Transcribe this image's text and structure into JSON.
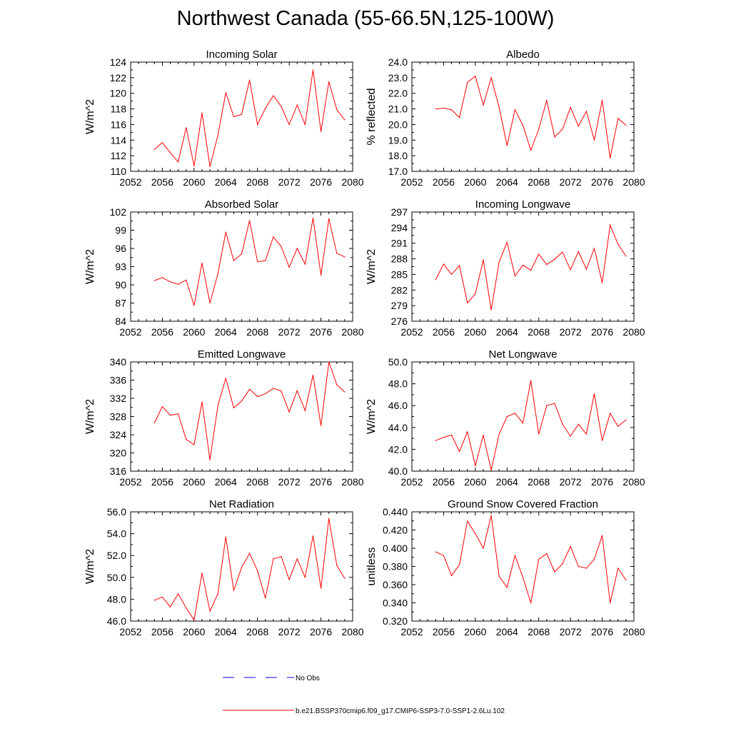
{
  "title": "Northwest Canada (55-66.5N,125-100W)",
  "colors": {
    "series": "#ff0000",
    "obs": "#0000ff",
    "axis": "#000000"
  },
  "legend": {
    "obs_label": "No Obs",
    "model_label": "b.e21.BSSP370cmip6.f09_g17.CMIP6-SSP3-7.0-SSP1-2.6Lu.102"
  },
  "chart_data": [
    {
      "type": "line",
      "title": "Incoming Solar",
      "ylabel": "W/m^2",
      "xlim": [
        2052,
        2080
      ],
      "ylim": [
        110,
        124
      ],
      "xticks": [
        2052,
        2056,
        2060,
        2064,
        2068,
        2072,
        2076,
        2080
      ],
      "yticks": [
        "110",
        "112",
        "114",
        "116",
        "118",
        "120",
        "122",
        "124"
      ],
      "x": [
        2055,
        2056,
        2057,
        2058,
        2059,
        2060,
        2061,
        2062,
        2063,
        2064,
        2065,
        2066,
        2067,
        2068,
        2069,
        2070,
        2071,
        2072,
        2073,
        2074,
        2075,
        2076,
        2077,
        2078,
        2079
      ],
      "series": [
        {
          "values": [
            112.8,
            113.7,
            112.4,
            111.2,
            115.6,
            110.7,
            117.5,
            110.6,
            114.6,
            120.1,
            117.0,
            117.3,
            121.7,
            116.0,
            118.1,
            119.7,
            118.3,
            116.0,
            118.5,
            116.0,
            123.0,
            115.1,
            121.5,
            117.9,
            116.6
          ]
        }
      ]
    },
    {
      "type": "line",
      "title": "Albedo",
      "ylabel": "% reflected",
      "xlim": [
        2052,
        2080
      ],
      "ylim": [
        17,
        24
      ],
      "xticks": [
        2052,
        2056,
        2060,
        2064,
        2068,
        2072,
        2076,
        2080
      ],
      "yticks": [
        "17.0",
        "18.0",
        "19.0",
        "20.0",
        "21.0",
        "22.0",
        "23.0",
        "24.0"
      ],
      "x": [
        2055,
        2056,
        2057,
        2058,
        2059,
        2060,
        2061,
        2062,
        2063,
        2064,
        2065,
        2066,
        2067,
        2068,
        2069,
        2070,
        2071,
        2072,
        2073,
        2074,
        2075,
        2076,
        2077,
        2078,
        2079
      ],
      "series": [
        {
          "values": [
            21.0,
            21.05,
            20.95,
            20.45,
            22.7,
            23.1,
            21.25,
            23.0,
            21.1,
            18.65,
            20.95,
            19.95,
            18.35,
            19.7,
            21.55,
            19.2,
            19.7,
            21.1,
            19.9,
            20.85,
            19.0,
            21.55,
            17.85,
            20.4,
            19.95
          ]
        }
      ]
    },
    {
      "type": "line",
      "title": "Absorbed Solar",
      "ylabel": "W/m^2",
      "xlim": [
        2052,
        2080
      ],
      "ylim": [
        84,
        102
      ],
      "xticks": [
        2052,
        2056,
        2060,
        2064,
        2068,
        2072,
        2076,
        2080
      ],
      "yticks": [
        "84",
        "87",
        "90",
        "93",
        "96",
        "99",
        "102"
      ],
      "x": [
        2055,
        2056,
        2057,
        2058,
        2059,
        2060,
        2061,
        2062,
        2063,
        2064,
        2065,
        2066,
        2067,
        2068,
        2069,
        2070,
        2071,
        2072,
        2073,
        2074,
        2075,
        2076,
        2077,
        2078,
        2079
      ],
      "series": [
        {
          "values": [
            90.7,
            91.2,
            90.5,
            90.1,
            90.8,
            86.6,
            93.6,
            87.0,
            91.8,
            98.7,
            94.0,
            95.1,
            100.6,
            93.8,
            94.0,
            97.9,
            96.3,
            92.9,
            96.0,
            93.4,
            101.0,
            91.6,
            100.9,
            95.2,
            94.6
          ]
        }
      ]
    },
    {
      "type": "line",
      "title": "Incoming Longwave",
      "ylabel": "W/m^2",
      "xlim": [
        2052,
        2080
      ],
      "ylim": [
        276,
        297
      ],
      "xticks": [
        2052,
        2056,
        2060,
        2064,
        2068,
        2072,
        2076,
        2080
      ],
      "yticks": [
        "276",
        "279",
        "282",
        "285",
        "288",
        "291",
        "294",
        "297"
      ],
      "x": [
        2055,
        2056,
        2057,
        2058,
        2059,
        2060,
        2061,
        2062,
        2063,
        2064,
        2065,
        2066,
        2067,
        2068,
        2069,
        2070,
        2071,
        2072,
        2073,
        2074,
        2075,
        2076,
        2077,
        2078,
        2079
      ],
      "series": [
        {
          "values": [
            284.0,
            287.0,
            285.0,
            286.7,
            279.5,
            281.3,
            287.8,
            278.2,
            287.4,
            291.2,
            284.7,
            286.8,
            285.8,
            288.9,
            286.9,
            287.9,
            289.3,
            285.9,
            289.4,
            286.0,
            290.0,
            283.4,
            294.5,
            290.8,
            288.5
          ]
        }
      ]
    },
    {
      "type": "line",
      "title": "Emitted Longwave",
      "ylabel": "W/m^2",
      "xlim": [
        2052,
        2080
      ],
      "ylim": [
        316,
        340
      ],
      "xticks": [
        2052,
        2056,
        2060,
        2064,
        2068,
        2072,
        2076,
        2080
      ],
      "yticks": [
        "316",
        "320",
        "324",
        "328",
        "332",
        "336",
        "340"
      ],
      "x": [
        2055,
        2056,
        2057,
        2058,
        2059,
        2060,
        2061,
        2062,
        2063,
        2064,
        2065,
        2066,
        2067,
        2068,
        2069,
        2070,
        2071,
        2072,
        2073,
        2074,
        2075,
        2076,
        2077,
        2078,
        2079
      ],
      "series": [
        {
          "values": [
            326.6,
            330.2,
            328.3,
            328.6,
            323.0,
            321.8,
            331.2,
            318.5,
            330.4,
            336.4,
            329.9,
            331.4,
            334.0,
            332.4,
            333.0,
            334.2,
            333.6,
            329.0,
            333.7,
            329.3,
            337.1,
            326.0,
            340.0,
            335.0,
            333.4
          ]
        }
      ]
    },
    {
      "type": "line",
      "title": "Net Longwave",
      "ylabel": "W/m^2",
      "xlim": [
        2052,
        2080
      ],
      "ylim": [
        40,
        50
      ],
      "xticks": [
        2052,
        2056,
        2060,
        2064,
        2068,
        2072,
        2076,
        2080
      ],
      "yticks": [
        "40.0",
        "42.0",
        "44.0",
        "46.0",
        "48.0",
        "50.0"
      ],
      "x": [
        2055,
        2056,
        2057,
        2058,
        2059,
        2060,
        2061,
        2062,
        2063,
        2064,
        2065,
        2066,
        2067,
        2068,
        2069,
        2070,
        2071,
        2072,
        2073,
        2074,
        2075,
        2076,
        2077,
        2078,
        2079
      ],
      "series": [
        {
          "values": [
            42.8,
            43.1,
            43.3,
            41.8,
            43.6,
            40.5,
            43.3,
            40.1,
            43.4,
            45.0,
            45.3,
            44.4,
            48.3,
            43.4,
            46.0,
            46.2,
            44.3,
            43.2,
            44.3,
            43.4,
            47.1,
            42.8,
            45.3,
            44.1,
            44.7
          ]
        }
      ]
    },
    {
      "type": "line",
      "title": "Net Radiation",
      "ylabel": "W/m^2",
      "xlim": [
        2052,
        2080
      ],
      "ylim": [
        46,
        56
      ],
      "xticks": [
        2052,
        2056,
        2060,
        2064,
        2068,
        2072,
        2076,
        2080
      ],
      "yticks": [
        "46.0",
        "48.0",
        "50.0",
        "52.0",
        "54.0",
        "56.0"
      ],
      "x": [
        2055,
        2056,
        2057,
        2058,
        2059,
        2060,
        2061,
        2062,
        2063,
        2064,
        2065,
        2066,
        2067,
        2068,
        2069,
        2070,
        2071,
        2072,
        2073,
        2074,
        2075,
        2076,
        2077,
        2078,
        2079
      ],
      "series": [
        {
          "values": [
            47.9,
            48.2,
            47.3,
            48.5,
            47.2,
            46.1,
            50.4,
            46.9,
            48.5,
            53.7,
            48.8,
            50.9,
            52.2,
            50.6,
            48.1,
            51.7,
            51.9,
            49.8,
            51.7,
            50.0,
            53.8,
            49.0,
            55.4,
            51.1,
            49.9
          ]
        }
      ]
    },
    {
      "type": "line",
      "title": "Ground Snow Covered Fraction",
      "ylabel": "unitless",
      "xlim": [
        2052,
        2080
      ],
      "ylim": [
        0.32,
        0.44
      ],
      "xticks": [
        2052,
        2056,
        2060,
        2064,
        2068,
        2072,
        2076,
        2080
      ],
      "yticks": [
        "0.320",
        "0.340",
        "0.360",
        "0.380",
        "0.400",
        "0.420",
        "0.440"
      ],
      "x": [
        2055,
        2056,
        2057,
        2058,
        2059,
        2060,
        2061,
        2062,
        2063,
        2064,
        2065,
        2066,
        2067,
        2068,
        2069,
        2070,
        2071,
        2072,
        2073,
        2074,
        2075,
        2076,
        2077,
        2078,
        2079
      ],
      "series": [
        {
          "values": [
            0.396,
            0.392,
            0.37,
            0.382,
            0.43,
            0.416,
            0.4,
            0.436,
            0.369,
            0.357,
            0.392,
            0.368,
            0.34,
            0.388,
            0.394,
            0.374,
            0.383,
            0.402,
            0.38,
            0.378,
            0.388,
            0.414,
            0.34,
            0.378,
            0.365
          ]
        }
      ]
    }
  ]
}
